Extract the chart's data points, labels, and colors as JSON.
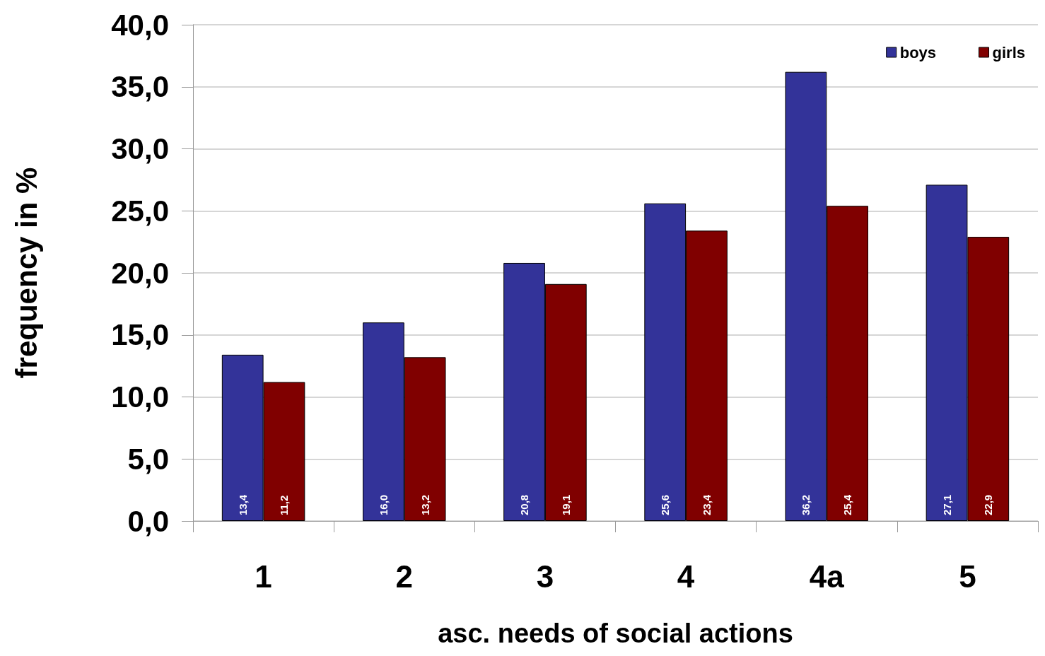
{
  "chart_data": {
    "type": "bar",
    "xlabel": "asc. needs of social actions",
    "ylabel": "frequency in %",
    "categories": [
      "1",
      "2",
      "3",
      "4",
      "4a",
      "5"
    ],
    "series": [
      {
        "name": "boys",
        "color": "#333399",
        "values": [
          13.4,
          16.0,
          20.8,
          25.6,
          36.2,
          27.1
        ],
        "value_labels": [
          "13,4",
          "16,0",
          "20,8",
          "25,6",
          "36,2",
          "27,1"
        ]
      },
      {
        "name": "girls",
        "color": "#800000",
        "values": [
          11.2,
          13.2,
          19.1,
          23.4,
          25.4,
          22.9
        ],
        "value_labels": [
          "11,2",
          "13,2",
          "19,1",
          "23,4",
          "25,4",
          "22,9"
        ]
      }
    ],
    "ylim": [
      0,
      40
    ],
    "yticks": [
      {
        "value": 0,
        "label": "0,0"
      },
      {
        "value": 5,
        "label": "5,0"
      },
      {
        "value": 10,
        "label": "10,0"
      },
      {
        "value": 15,
        "label": "15,0"
      },
      {
        "value": 20,
        "label": "20,0"
      },
      {
        "value": 25,
        "label": "25,0"
      },
      {
        "value": 30,
        "label": "30,0"
      },
      {
        "value": 35,
        "label": "35,0"
      },
      {
        "value": 40,
        "label": "40,0"
      }
    ],
    "grid": "y",
    "legend": "top right"
  }
}
